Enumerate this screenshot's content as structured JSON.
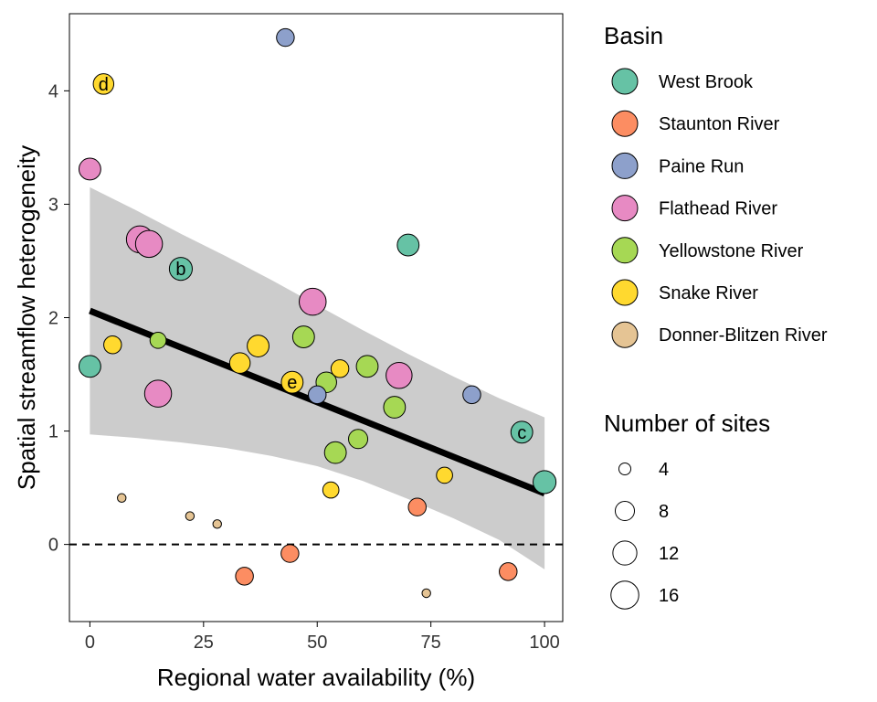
{
  "chart_data": {
    "type": "scatter",
    "xlabel": "Regional water availability (%)",
    "ylabel": "Spatial streamflow heterogeneity",
    "xlim": [
      -4.5,
      104
    ],
    "ylim": [
      -0.68,
      4.68
    ],
    "xticks": [
      0,
      25,
      50,
      75,
      100
    ],
    "yticks": [
      0,
      1,
      2,
      3,
      4
    ],
    "xtick_labels": [
      "0",
      "25",
      "50",
      "75",
      "100"
    ],
    "ytick_labels": [
      "0",
      "1",
      "2",
      "3",
      "4"
    ],
    "grid": false,
    "reference_line": {
      "y": 0,
      "style": "dashed"
    },
    "fit_line": {
      "x": [
        0,
        100
      ],
      "y": [
        2.06,
        0.45
      ]
    },
    "confidence_band": {
      "x": [
        0,
        10,
        20,
        30,
        40,
        50,
        60,
        70,
        80,
        90,
        100
      ],
      "upper": [
        3.15,
        2.95,
        2.74,
        2.54,
        2.33,
        2.11,
        1.89,
        1.68,
        1.48,
        1.29,
        1.12
      ],
      "lower": [
        0.97,
        0.94,
        0.9,
        0.85,
        0.78,
        0.69,
        0.56,
        0.4,
        0.23,
        0.04,
        -0.22
      ]
    },
    "legend_color": {
      "title": "Basin",
      "entries": [
        {
          "name": "West Brook",
          "color": "#66c2a5"
        },
        {
          "name": "Staunton River",
          "color": "#fc8d62"
        },
        {
          "name": "Paine Run",
          "color": "#8da0cb"
        },
        {
          "name": "Flathead River",
          "color": "#e78ac3"
        },
        {
          "name": "Yellowstone River",
          "color": "#a6d854"
        },
        {
          "name": "Snake River",
          "color": "#ffd92f"
        },
        {
          "name": "Donner-Blitzen River",
          "color": "#e5c494"
        }
      ]
    },
    "legend_size": {
      "title": "Number of sites",
      "entries": [
        {
          "label": "4",
          "n": 4
        },
        {
          "label": "8",
          "n": 8
        },
        {
          "label": "12",
          "n": 12
        },
        {
          "label": "16",
          "n": 16
        }
      ]
    },
    "legend_position": "right",
    "points": [
      {
        "x": 43,
        "y": 4.47,
        "n": 7,
        "basin": "Paine Run",
        "label": ""
      },
      {
        "x": 3,
        "y": 4.06,
        "n": 9,
        "basin": "Snake River",
        "label": "d"
      },
      {
        "x": 0,
        "y": 3.31,
        "n": 10,
        "basin": "Flathead River",
        "label": ""
      },
      {
        "x": 11,
        "y": 2.69,
        "n": 15,
        "basin": "Flathead River",
        "label": ""
      },
      {
        "x": 13,
        "y": 2.65,
        "n": 15,
        "basin": "Flathead River",
        "label": ""
      },
      {
        "x": 70,
        "y": 2.64,
        "n": 10,
        "basin": "West Brook",
        "label": ""
      },
      {
        "x": 20,
        "y": 2.43,
        "n": 11,
        "basin": "West Brook",
        "label": "b"
      },
      {
        "x": 49,
        "y": 2.14,
        "n": 15,
        "basin": "Flathead River",
        "label": ""
      },
      {
        "x": 5,
        "y": 1.76,
        "n": 7,
        "basin": "Snake River",
        "label": ""
      },
      {
        "x": 15,
        "y": 1.8,
        "n": 6,
        "basin": "Yellowstone River",
        "label": ""
      },
      {
        "x": 37,
        "y": 1.75,
        "n": 10,
        "basin": "Snake River",
        "label": ""
      },
      {
        "x": 47,
        "y": 1.83,
        "n": 10,
        "basin": "Yellowstone River",
        "label": ""
      },
      {
        "x": 0,
        "y": 1.57,
        "n": 10,
        "basin": "West Brook",
        "label": ""
      },
      {
        "x": 33,
        "y": 1.6,
        "n": 9,
        "basin": "Snake River",
        "label": ""
      },
      {
        "x": 55,
        "y": 1.55,
        "n": 7,
        "basin": "Snake River",
        "label": ""
      },
      {
        "x": 61,
        "y": 1.57,
        "n": 10,
        "basin": "Yellowstone River",
        "label": ""
      },
      {
        "x": 68,
        "y": 1.49,
        "n": 14,
        "basin": "Flathead River",
        "label": ""
      },
      {
        "x": 44.5,
        "y": 1.43,
        "n": 10,
        "basin": "Snake River",
        "label": "e"
      },
      {
        "x": 52,
        "y": 1.43,
        "n": 9,
        "basin": "Yellowstone River",
        "label": ""
      },
      {
        "x": 50,
        "y": 1.32,
        "n": 7,
        "basin": "Paine Run",
        "label": ""
      },
      {
        "x": 84,
        "y": 1.32,
        "n": 7,
        "basin": "Paine Run",
        "label": ""
      },
      {
        "x": 15,
        "y": 1.33,
        "n": 15,
        "basin": "Flathead River",
        "label": ""
      },
      {
        "x": 67,
        "y": 1.21,
        "n": 10,
        "basin": "Yellowstone River",
        "label": ""
      },
      {
        "x": 95,
        "y": 0.99,
        "n": 10,
        "basin": "West Brook",
        "label": "c"
      },
      {
        "x": 59,
        "y": 0.93,
        "n": 8,
        "basin": "Yellowstone River",
        "label": ""
      },
      {
        "x": 54,
        "y": 0.81,
        "n": 10,
        "basin": "Yellowstone River",
        "label": ""
      },
      {
        "x": 78,
        "y": 0.61,
        "n": 6,
        "basin": "Snake River",
        "label": ""
      },
      {
        "x": 100,
        "y": 0.55,
        "n": 11,
        "basin": "West Brook",
        "label": ""
      },
      {
        "x": 53,
        "y": 0.48,
        "n": 6,
        "basin": "Snake River",
        "label": ""
      },
      {
        "x": 7,
        "y": 0.41,
        "n": 3,
        "basin": "Donner-Blitzen River",
        "label": ""
      },
      {
        "x": 72,
        "y": 0.33,
        "n": 7,
        "basin": "Staunton River",
        "label": ""
      },
      {
        "x": 22,
        "y": 0.25,
        "n": 3,
        "basin": "Donner-Blitzen River",
        "label": ""
      },
      {
        "x": 28,
        "y": 0.18,
        "n": 3,
        "basin": "Donner-Blitzen River",
        "label": ""
      },
      {
        "x": 44,
        "y": -0.08,
        "n": 7,
        "basin": "Staunton River",
        "label": ""
      },
      {
        "x": 92,
        "y": -0.24,
        "n": 7,
        "basin": "Staunton River",
        "label": ""
      },
      {
        "x": 34,
        "y": -0.28,
        "n": 7,
        "basin": "Staunton River",
        "label": ""
      },
      {
        "x": 74,
        "y": -0.43,
        "n": 3,
        "basin": "Donner-Blitzen River",
        "label": ""
      }
    ]
  }
}
